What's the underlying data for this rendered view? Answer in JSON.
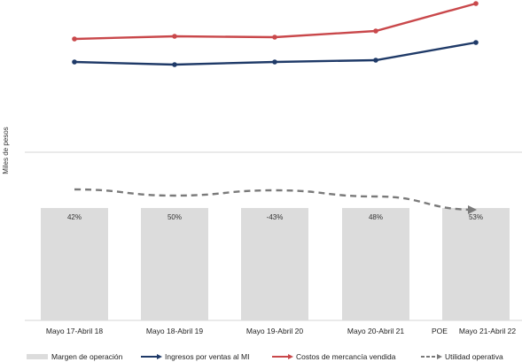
{
  "chart_data": {
    "type": "bar+line",
    "ylabel": "Miles de pesos",
    "categories": [
      "Mayo 17-Abril 18",
      "Mayo 18-Abril 19",
      "Mayo 19-Abril 20",
      "Mayo 20-Abril 21",
      "Mayo 21-Abril 22"
    ],
    "category_prefix_last": "POE",
    "bars": {
      "name": "Margen de operación",
      "labels": [
        "42%",
        "50%",
        "-43%",
        "48%",
        "53%"
      ],
      "color": "#dcdcdc"
    },
    "series": [
      {
        "name": "Ingresos por ventas al MI",
        "values": [
          70,
          73,
          70,
          68,
          48
        ],
        "color": "#1f3a68"
      },
      {
        "name": "Costos de mercancía vendida",
        "values": [
          44,
          41,
          42,
          35,
          4
        ],
        "color": "#c9484b"
      },
      {
        "name": "Utilidad operativa",
        "values": [
          214,
          221,
          215,
          222,
          237
        ],
        "color": "#7a7a7a",
        "dashed": true
      }
    ]
  },
  "legend": {
    "bars": "Margen de operación",
    "s1": "Ingresos por ventas al MI",
    "s2": "Costos de mercancía vendida",
    "s3": "Utilidad operativa"
  }
}
